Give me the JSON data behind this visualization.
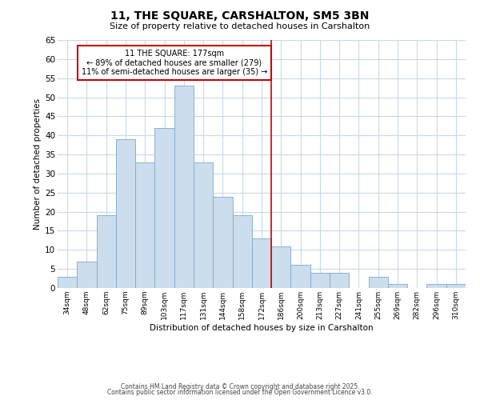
{
  "title_line1": "11, THE SQUARE, CARSHALTON, SM5 3BN",
  "title_line2": "Size of property relative to detached houses in Carshalton",
  "xlabel": "Distribution of detached houses by size in Carshalton",
  "ylabel": "Number of detached properties",
  "bar_labels": [
    "34sqm",
    "48sqm",
    "62sqm",
    "75sqm",
    "89sqm",
    "103sqm",
    "117sqm",
    "131sqm",
    "144sqm",
    "158sqm",
    "172sqm",
    "186sqm",
    "200sqm",
    "213sqm",
    "227sqm",
    "241sqm",
    "255sqm",
    "269sqm",
    "282sqm",
    "296sqm",
    "310sqm"
  ],
  "bar_values": [
    3,
    7,
    19,
    39,
    33,
    42,
    53,
    33,
    24,
    19,
    13,
    11,
    6,
    4,
    4,
    0,
    3,
    1,
    0,
    1,
    1
  ],
  "bar_color": "#ccdded",
  "bar_edge_color": "#7aaac8",
  "bar_width": 1.0,
  "reference_line_x": 10.5,
  "reference_line_color": "#cc0000",
  "annotation_text_line1": "11 THE SQUARE: 177sqm",
  "annotation_text_line2": "← 89% of detached houses are smaller (279)",
  "annotation_text_line3": "11% of semi-detached houses are larger (35) →",
  "annotation_box_color": "#ffffff",
  "annotation_box_edge_color": "#cc0000",
  "ylim": [
    0,
    65
  ],
  "yticks": [
    0,
    5,
    10,
    15,
    20,
    25,
    30,
    35,
    40,
    45,
    50,
    55,
    60,
    65
  ],
  "background_color": "#ffffff",
  "grid_color": "#c8d8e8",
  "footer_line1": "Contains HM Land Registry data © Crown copyright and database right 2025.",
  "footer_line2": "Contains public sector information licensed under the Open Government Licence v3.0."
}
